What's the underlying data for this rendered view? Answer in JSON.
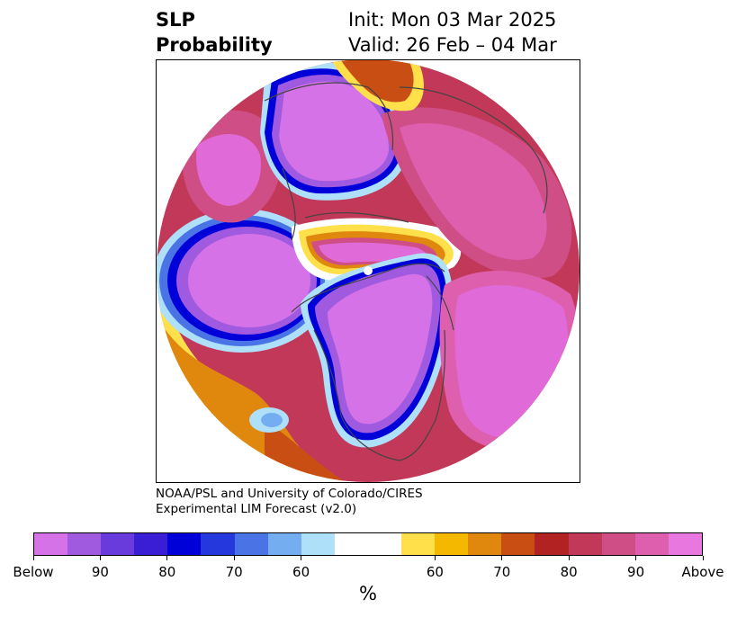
{
  "title": {
    "line1": "SLP",
    "line2": "Probability",
    "init": "Init: Mon 03 Mar 2025",
    "valid": "Valid: 26 Feb – 04 Mar"
  },
  "credit": {
    "line1": "NOAA/PSL and University of Colorado/CIRES",
    "line2": "Experimental LIM Forecast (v2.0)"
  },
  "colorbar": {
    "units": "%",
    "colors": [
      "#d572e8",
      "#a05ae0",
      "#6a3bdc",
      "#3a1ed6",
      "#0000d8",
      "#2438de",
      "#4a74e6",
      "#74aef0",
      "#aee0fa",
      "#ffffff",
      "#ffffff",
      "#ffe04a",
      "#f5b800",
      "#e0880e",
      "#c84e14",
      "#b22222",
      "#c23858",
      "#cf4e86",
      "#dd5fad",
      "#e878e0"
    ],
    "tick_labels": [
      "Below",
      "90",
      "80",
      "70",
      "60",
      "60",
      "70",
      "80",
      "90",
      "Above"
    ]
  },
  "colors": {
    "above_core": "#e06ad8",
    "above_mid": "#cf4e86",
    "above_edge": "#b22222",
    "below_core": "#d572e8",
    "below_mid": "#6a3bdc",
    "below_edge": "#0000d8",
    "near_60_warm": "#ffe04a",
    "near_60_cool": "#aee0fa",
    "coastline": "#444444"
  }
}
